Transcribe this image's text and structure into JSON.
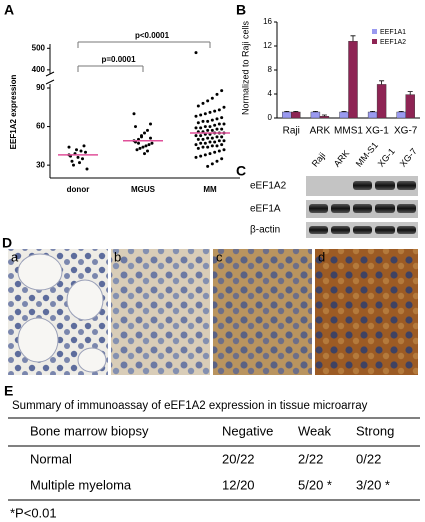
{
  "panel_labels": [
    "A",
    "B",
    "C",
    "D",
    "E"
  ],
  "chart_data": [
    {
      "type": "strip",
      "y_label": "EEF1A2 expression",
      "categories": [
        "donor",
        "MGUS",
        "MM"
      ],
      "values": [
        [
          38,
          40,
          35,
          32,
          42,
          30,
          37,
          27,
          45,
          41,
          36,
          39,
          33,
          44
        ],
        [
          70,
          62,
          57,
          55,
          52,
          50,
          48,
          47,
          46,
          45,
          44,
          43,
          42,
          49,
          51,
          41,
          39,
          53,
          47,
          60
        ],
        [
          480,
          88,
          85,
          82,
          80,
          78,
          76,
          75,
          73,
          72,
          71,
          70,
          69,
          68,
          67,
          66,
          65,
          64,
          64,
          63,
          62,
          62,
          61,
          60,
          60,
          59,
          59,
          58,
          58,
          57,
          57,
          56,
          56,
          55,
          55,
          55,
          54,
          54,
          53,
          53,
          52,
          52,
          51,
          51,
          50,
          50,
          49,
          49,
          48,
          48,
          47,
          47,
          46,
          46,
          45,
          45,
          44,
          44,
          43,
          42,
          41,
          40,
          39,
          38,
          37,
          36,
          35,
          33,
          31,
          29
        ]
      ],
      "color": "#000000",
      "means": [
        38,
        49,
        55
      ],
      "mean_color": "#e0509a",
      "ylim": [
        20,
        90
      ],
      "yticks": [
        30,
        60,
        90
      ],
      "upper_ylim": [
        390,
        520
      ],
      "upper_yticks": [
        400,
        500
      ],
      "annotations": [
        "p=0.0001",
        "p<0.0001"
      ]
    },
    {
      "type": "bar",
      "y_label": "Normalized to Raji cells",
      "categories": [
        "Raji",
        "ARK",
        "MMS1",
        "XG-1",
        "XG-7"
      ],
      "series": [
        {
          "name": "EEF1A1",
          "color": "#9a9af0",
          "values": [
            1,
            1,
            1,
            1,
            1
          ],
          "errors": [
            0.1,
            0.1,
            0.1,
            0.1,
            0.1
          ]
        },
        {
          "name": "EEF1A2",
          "color": "#8e2454",
          "values": [
            1,
            0.3,
            12.8,
            5.6,
            3.9
          ],
          "errors": [
            0.1,
            0.2,
            0.9,
            0.6,
            0.5
          ]
        }
      ],
      "ylim": [
        0,
        16
      ],
      "yticks": [
        0,
        4,
        8,
        12,
        16
      ],
      "legend": "upper right"
    }
  ],
  "blot": {
    "lanes": [
      "Raji",
      "ARK",
      "MM-S1",
      "XG-1",
      "XG-7"
    ],
    "rows": [
      "eEF1A2",
      "eEF1A",
      "β-actin"
    ]
  },
  "images": [
    "a",
    "b",
    "c",
    "d"
  ],
  "table": {
    "title": "Summary of immunoassay of eEF1A2 expression in tissue microarray",
    "header": [
      "Bone marrow biopsy",
      "Negative",
      "Weak",
      "Strong"
    ],
    "rows": [
      [
        "Normal",
        "20/22",
        "2/22",
        "0/22"
      ],
      [
        "Multiple myeloma",
        "12/20",
        "5/20 *",
        "3/20 *"
      ]
    ],
    "footnote": "*P<0.01"
  }
}
